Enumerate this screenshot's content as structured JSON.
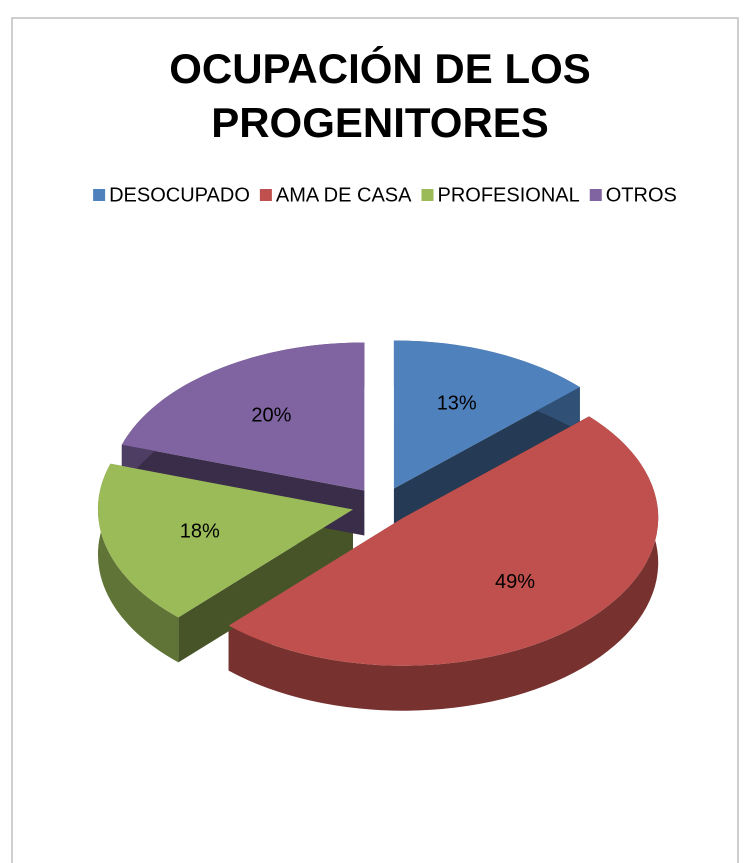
{
  "chart_data": {
    "type": "pie3d",
    "title": "OCUPACIÓN DE LOS PROGENITORES",
    "categories": [
      "DESOCUPADO",
      "AMA DE CASA",
      "PROFESIONAL",
      "OTROS"
    ],
    "values": [
      13,
      49,
      18,
      20
    ],
    "value_labels": [
      "13%",
      "49%",
      "18%",
      "20%"
    ],
    "colors": [
      "#4f81bd",
      "#c0504d",
      "#9bbb59",
      "#8064a2"
    ],
    "legend": "top"
  }
}
